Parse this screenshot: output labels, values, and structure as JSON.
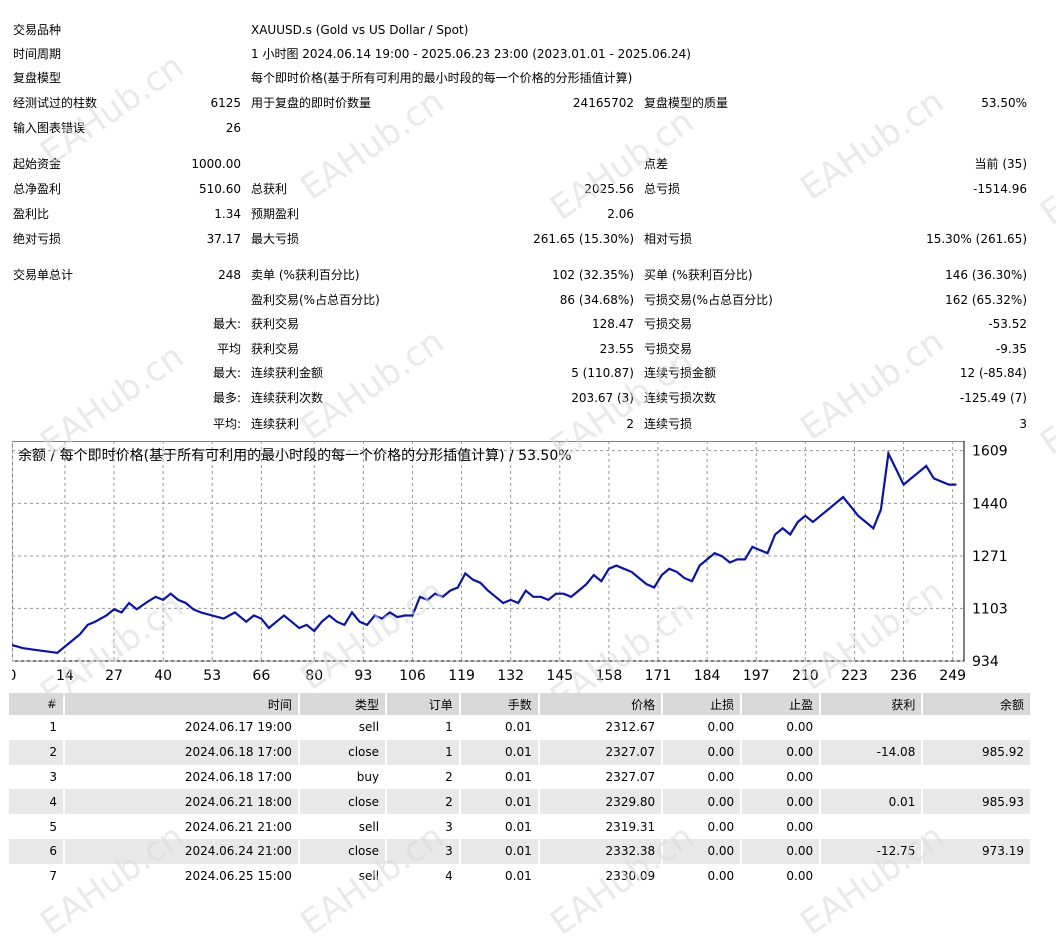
{
  "summary": {
    "symbol_label": "交易品种",
    "symbol_value": "XAUUSD.s (Gold vs US Dollar / Spot)",
    "period_label": "时间周期",
    "period_value": "1 小时图 2024.06.14 19:00 - 2025.06.23 23:00 (2023.01.01 - 2025.06.24)",
    "model_label": "复盘模型",
    "model_value": "每个即时价格(基于所有可利用的最小时段的每一个价格的分形插值计算)",
    "bars_label": "经测试过的柱数",
    "bars_value": "6125",
    "ticks_label": "用于复盘的即时价数量",
    "ticks_value": "24165702",
    "quality_label": "复盘模型的质量",
    "quality_value": "53.50%",
    "errors_label": "输入图表错误",
    "errors_value": "26",
    "deposit_label": "起始资金",
    "deposit_value": "1000.00",
    "spread_label": "点差",
    "spread_value": "当前 (35)",
    "net_label": "总净盈利",
    "net_value": "510.60",
    "gross_profit_label": "总获利",
    "gross_profit_value": "2025.56",
    "gross_loss_label": "总亏损",
    "gross_loss_value": "-1514.96",
    "pf_label": "盈利比",
    "pf_value": "1.34",
    "payoff_label": "预期盈利",
    "payoff_value": "2.06",
    "abs_dd_label": "绝对亏损",
    "abs_dd_value": "37.17",
    "max_dd_label": "最大亏损",
    "max_dd_value": "261.65 (15.30%)",
    "rel_dd_label": "相对亏损",
    "rel_dd_value": "15.30% (261.65)",
    "trades_label": "交易单总计",
    "trades_value": "248",
    "short_label": "卖单 (%获利百分比)",
    "short_value": "102 (32.35%)",
    "long_label": "买单 (%获利百分比)",
    "long_value": "146 (36.30%)",
    "profit_trades_label": "盈利交易(%占总百分比)",
    "profit_trades_value": "86 (34.68%)",
    "loss_trades_label": "亏损交易(%占总百分比)",
    "loss_trades_value": "162 (65.32%)",
    "largest_prefix": "最大:",
    "largest_profit_label": "获利交易",
    "largest_profit_value": "128.47",
    "largest_loss_label": "亏损交易",
    "largest_loss_value": "-53.52",
    "average_prefix": "平均",
    "avg_profit_label": "获利交易",
    "avg_profit_value": "23.55",
    "avg_loss_label": "亏损交易",
    "avg_loss_value": "-9.35",
    "max_prefix": "最大:",
    "max_cons_win_label": "连续获利金额",
    "max_cons_win_value": "5 (110.87)",
    "max_cons_loss_label": "连续亏损金额",
    "max_cons_loss_value": "12 (-85.84)",
    "most_prefix": "最多:",
    "max_cons_profit_label": "连续获利次数",
    "max_cons_profit_value": "203.67 (3)",
    "max_cons_lossamt_label": "连续亏损次数",
    "max_cons_lossamt_value": "-125.49 (7)",
    "avg2_prefix": "平均:",
    "avg_cons_win_label": "连续获利",
    "avg_cons_win_value": "2",
    "avg_cons_loss_label": "连续亏损",
    "avg_cons_loss_value": "3"
  },
  "watermark": "EAHub.cn",
  "chart_data": {
    "type": "line",
    "title": "余额 / 每个即时价格(基于所有可利用的最小时段的每一个价格的分形插值计算) / 53.50%",
    "line_color": "#0a14a0",
    "x_ticks": [
      0,
      14,
      27,
      40,
      53,
      66,
      80,
      93,
      106,
      119,
      132,
      145,
      158,
      171,
      184,
      197,
      210,
      223,
      236,
      249
    ],
    "y_ticks": [
      934,
      1103,
      1271,
      1440,
      1609
    ],
    "xlim": [
      0,
      252
    ],
    "ylim": [
      934,
      1640
    ],
    "x": [
      0,
      3,
      6,
      9,
      12,
      15,
      18,
      20,
      22,
      25,
      27,
      29,
      31,
      33,
      36,
      38,
      40,
      42,
      44,
      46,
      48,
      50,
      53,
      56,
      59,
      62,
      64,
      66,
      68,
      70,
      72,
      74,
      76,
      78,
      80,
      82,
      84,
      86,
      88,
      90,
      92,
      94,
      96,
      98,
      100,
      102,
      104,
      106,
      108,
      110,
      112,
      114,
      116,
      118,
      120,
      122,
      124,
      126,
      128,
      130,
      132,
      134,
      136,
      138,
      140,
      142,
      144,
      146,
      148,
      150,
      152,
      154,
      156,
      158,
      160,
      162,
      164,
      166,
      168,
      170,
      172,
      174,
      176,
      178,
      180,
      182,
      184,
      186,
      188,
      190,
      192,
      194,
      196,
      198,
      200,
      202,
      204,
      206,
      208,
      210,
      212,
      214,
      216,
      218,
      220,
      222,
      224,
      226,
      228,
      230,
      232,
      234,
      236,
      238,
      240,
      242,
      244,
      246,
      248,
      250
    ],
    "y": [
      985,
      975,
      970,
      965,
      960,
      990,
      1020,
      1050,
      1060,
      1080,
      1100,
      1090,
      1120,
      1100,
      1125,
      1140,
      1130,
      1150,
      1130,
      1120,
      1100,
      1090,
      1080,
      1070,
      1090,
      1060,
      1080,
      1070,
      1040,
      1060,
      1080,
      1060,
      1040,
      1050,
      1030,
      1060,
      1080,
      1060,
      1050,
      1090,
      1060,
      1050,
      1080,
      1070,
      1090,
      1075,
      1080,
      1080,
      1140,
      1130,
      1150,
      1140,
      1160,
      1170,
      1215,
      1195,
      1185,
      1160,
      1140,
      1120,
      1130,
      1120,
      1160,
      1140,
      1140,
      1130,
      1150,
      1150,
      1140,
      1160,
      1180,
      1210,
      1190,
      1230,
      1240,
      1230,
      1220,
      1200,
      1180,
      1170,
      1210,
      1230,
      1220,
      1200,
      1190,
      1240,
      1260,
      1280,
      1270,
      1250,
      1260,
      1260,
      1300,
      1290,
      1280,
      1340,
      1360,
      1340,
      1380,
      1400,
      1380,
      1400,
      1420,
      1440,
      1460,
      1430,
      1400,
      1380,
      1360,
      1420,
      1600,
      1550,
      1500,
      1520,
      1540,
      1560,
      1520,
      1510,
      1500,
      1500
    ]
  },
  "deals": {
    "headers": [
      "#",
      "时间",
      "类型",
      "订单",
      "手数",
      "价格",
      "止损",
      "止盈",
      "获利",
      "余额"
    ],
    "rows": [
      [
        "1",
        "2024.06.17 19:00",
        "sell",
        "1",
        "0.01",
        "2312.67",
        "0.00",
        "0.00",
        "",
        ""
      ],
      [
        "2",
        "2024.06.18 17:00",
        "close",
        "1",
        "0.01",
        "2327.07",
        "0.00",
        "0.00",
        "-14.08",
        "985.92"
      ],
      [
        "3",
        "2024.06.18 17:00",
        "buy",
        "2",
        "0.01",
        "2327.07",
        "0.00",
        "0.00",
        "",
        ""
      ],
      [
        "4",
        "2024.06.21 18:00",
        "close",
        "2",
        "0.01",
        "2329.80",
        "0.00",
        "0.00",
        "0.01",
        "985.93"
      ],
      [
        "5",
        "2024.06.21 21:00",
        "sell",
        "3",
        "0.01",
        "2319.31",
        "0.00",
        "0.00",
        "",
        ""
      ],
      [
        "6",
        "2024.06.24 21:00",
        "close",
        "3",
        "0.01",
        "2332.38",
        "0.00",
        "0.00",
        "-12.75",
        "973.19"
      ],
      [
        "7",
        "2024.06.25 15:00",
        "sell",
        "4",
        "0.01",
        "2330.09",
        "0.00",
        "0.00",
        "",
        ""
      ]
    ]
  }
}
